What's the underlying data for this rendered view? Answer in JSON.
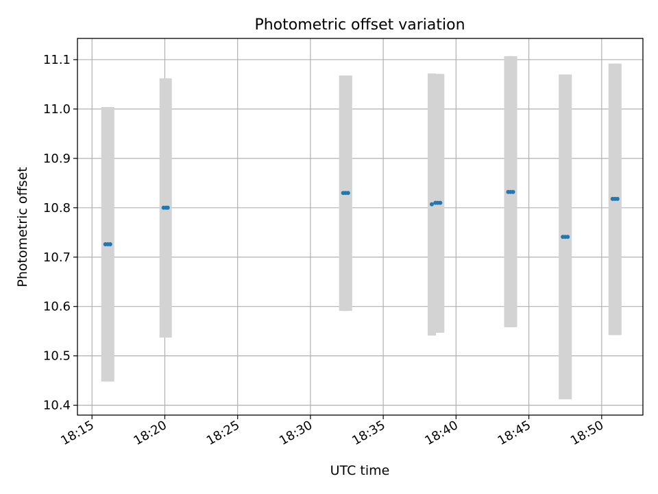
{
  "chart_data": {
    "type": "scatter",
    "title": "Photometric offset variation",
    "xlabel": "UTC time",
    "ylabel": "Photometric offset",
    "x_ticks": [
      "18:15",
      "18:20",
      "18:25",
      "18:30",
      "18:35",
      "18:40",
      "18:45",
      "18:50"
    ],
    "y_ticks": [
      "10.4",
      "10.5",
      "10.6",
      "10.7",
      "10.8",
      "10.9",
      "11.0",
      "11.1"
    ],
    "xlim": [
      "18:14:00",
      "18:52:50"
    ],
    "ylim": [
      10.38,
      11.143
    ],
    "grid": true,
    "point_color": "#1f77b4",
    "errorbar_color": "#d3d3d3",
    "points": [
      {
        "x": "18:15:55",
        "y": 10.726,
        "ylow": 10.448,
        "yhigh": 11.004
      },
      {
        "x": "18:16:05",
        "y": 10.726,
        "ylow": 10.448,
        "yhigh": 11.004
      },
      {
        "x": "18:16:15",
        "y": 10.726,
        "ylow": 10.448,
        "yhigh": 11.004
      },
      {
        "x": "18:19:55",
        "y": 10.8,
        "ylow": 10.537,
        "yhigh": 11.062
      },
      {
        "x": "18:20:05",
        "y": 10.8,
        "ylow": 10.537,
        "yhigh": 11.062
      },
      {
        "x": "18:20:12",
        "y": 10.8,
        "ylow": 10.537,
        "yhigh": 11.062
      },
      {
        "x": "18:32:15",
        "y": 10.83,
        "ylow": 10.591,
        "yhigh": 11.068
      },
      {
        "x": "18:32:25",
        "y": 10.83,
        "ylow": 10.591,
        "yhigh": 11.068
      },
      {
        "x": "18:32:35",
        "y": 10.83,
        "ylow": 10.591,
        "yhigh": 11.068
      },
      {
        "x": "18:38:20",
        "y": 10.807,
        "ylow": 10.541,
        "yhigh": 11.072
      },
      {
        "x": "18:38:35",
        "y": 10.81,
        "ylow": 10.547,
        "yhigh": 11.071
      },
      {
        "x": "18:38:45",
        "y": 10.81,
        "ylow": 10.547,
        "yhigh": 11.071
      },
      {
        "x": "18:38:55",
        "y": 10.81,
        "ylow": 10.547,
        "yhigh": 11.071
      },
      {
        "x": "18:43:35",
        "y": 10.832,
        "ylow": 10.558,
        "yhigh": 11.107
      },
      {
        "x": "18:43:45",
        "y": 10.832,
        "ylow": 10.558,
        "yhigh": 11.107
      },
      {
        "x": "18:43:55",
        "y": 10.832,
        "ylow": 10.558,
        "yhigh": 11.107
      },
      {
        "x": "18:47:20",
        "y": 10.741,
        "ylow": 10.412,
        "yhigh": 11.07
      },
      {
        "x": "18:47:30",
        "y": 10.741,
        "ylow": 10.412,
        "yhigh": 11.07
      },
      {
        "x": "18:47:40",
        "y": 10.741,
        "ylow": 10.412,
        "yhigh": 11.07
      },
      {
        "x": "18:50:45",
        "y": 10.818,
        "ylow": 10.542,
        "yhigh": 11.092
      },
      {
        "x": "18:50:55",
        "y": 10.818,
        "ylow": 10.542,
        "yhigh": 11.092
      },
      {
        "x": "18:51:05",
        "y": 10.818,
        "ylow": 10.542,
        "yhigh": 11.092
      }
    ]
  }
}
